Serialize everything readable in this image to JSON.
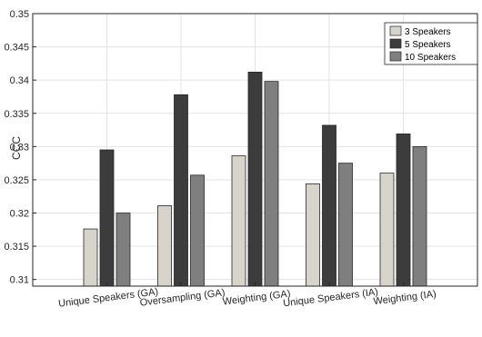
{
  "chart_data": {
    "type": "bar",
    "title": "",
    "xlabel": "",
    "ylabel": "CCC",
    "ylim": [
      0.309,
      0.35
    ],
    "yticks": [
      "0.31",
      "0.315",
      "0.32",
      "0.325",
      "0.33",
      "0.335",
      "0.34",
      "0.345",
      "0.35"
    ],
    "grid": true,
    "legend_position": "top-right",
    "categories": [
      "Unique Speakers (GA)",
      "Oversampling (GA)",
      "Weighting (GA)",
      "Unique Speakers (IA)",
      "Weighting (IA)"
    ],
    "series": [
      {
        "name": "3 Speakers",
        "color": "#d9d4cb",
        "values": [
          0.3176,
          0.3211,
          0.3286,
          0.3244,
          0.326
        ]
      },
      {
        "name": "5 Speakers",
        "color": "#3c3c3c",
        "values": [
          0.3295,
          0.3378,
          0.3412,
          0.3332,
          0.3319
        ]
      },
      {
        "name": "10 Speakers",
        "color": "#7f7f7f",
        "values": [
          0.32,
          0.3257,
          0.3398,
          0.3275,
          0.33
        ]
      }
    ]
  }
}
